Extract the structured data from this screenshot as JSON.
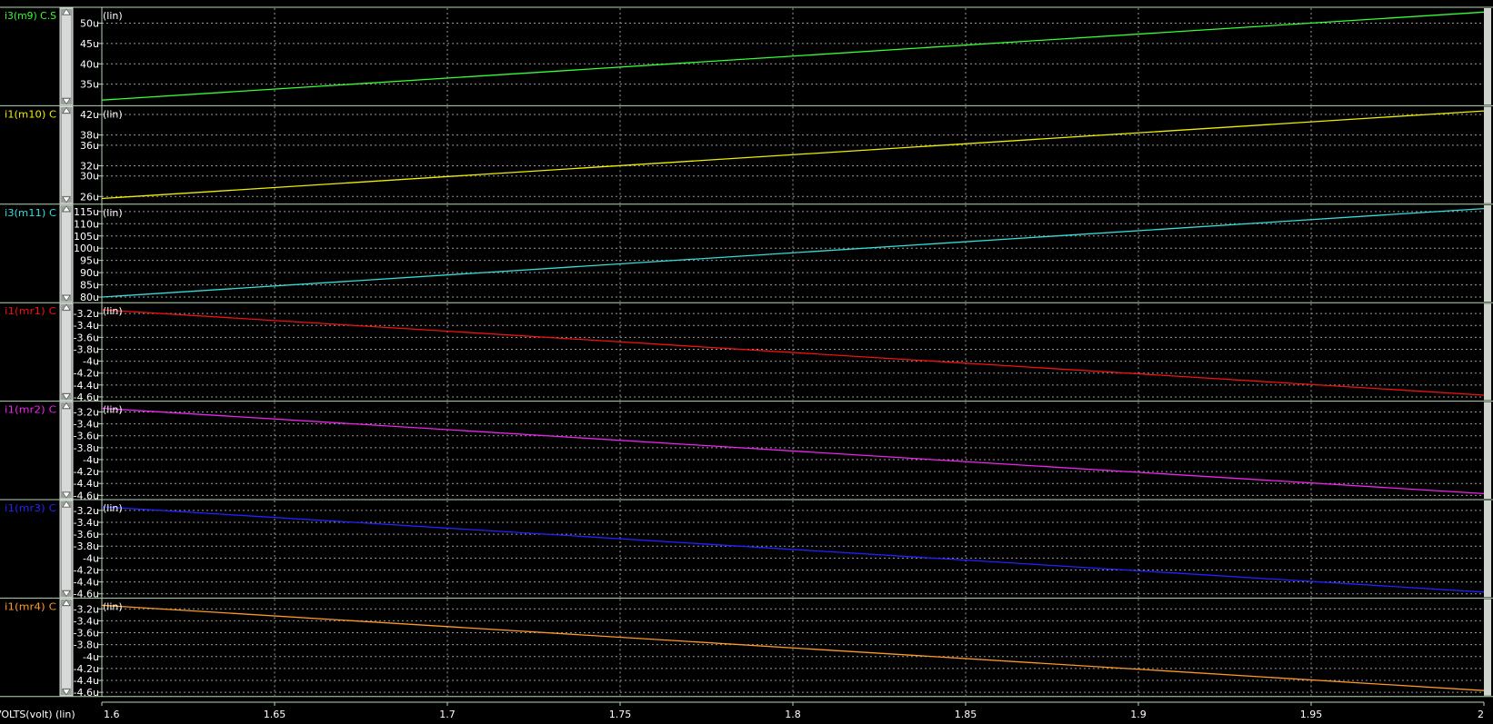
{
  "window": {
    "x_axis_label": "VOLTS(volt) (lin)",
    "scale_mode_label": "(lin)"
  },
  "colors": {
    "background": "#000000",
    "frame": "#b8d8b8",
    "grid": "#9a9a9a",
    "text": "#ffffff",
    "scrollbar": "#d8d8d8"
  },
  "chart_data": {
    "type": "line",
    "x_axis": {
      "label": "VOLTS(volt) (lin)",
      "range": [
        1.6,
        2.0
      ],
      "ticks": [
        1.6,
        1.65,
        1.7,
        1.75,
        1.8,
        1.85,
        1.9,
        1.95,
        2.0
      ],
      "tick_labels": [
        "1.6",
        "1.65",
        "1.7",
        "1.75",
        "1.8",
        "1.85",
        "1.9",
        "1.95",
        "2"
      ]
    },
    "panels": [
      {
        "name": "i3(m9)",
        "label": "i3(m9) C.S",
        "color": "#33ff33",
        "scale": "(lin)",
        "ylim": [
          30.6,
          53.0
        ],
        "y_ticks": [
          35,
          40,
          45,
          50
        ],
        "y_tick_labels": [
          "35u",
          "40u",
          "45u",
          "50u"
        ],
        "x": [
          1.6,
          2.0
        ],
        "y": [
          31.1,
          52.7
        ],
        "unit": "uA"
      },
      {
        "name": "i1(m10)",
        "label": "i1(m10) C",
        "color": "#eeee00",
        "scale": "(lin)",
        "ylim": [
          25.2,
          43.0
        ],
        "y_ticks": [
          26,
          30,
          32,
          36,
          38,
          42
        ],
        "y_tick_labels": [
          "26u",
          "30u",
          "32u",
          "36u",
          "38u",
          "42u"
        ],
        "x": [
          1.6,
          2.0
        ],
        "y": [
          25.6,
          42.7
        ],
        "unit": "uA"
      },
      {
        "name": "i3(m11)",
        "label": "i3(m11) C",
        "color": "#33dddd",
        "scale": "(lin)",
        "ylim": [
          79.2,
          116.5
        ],
        "y_ticks": [
          80,
          85,
          90,
          95,
          100,
          105,
          110,
          115
        ],
        "y_tick_labels": [
          "80u",
          "85u",
          "90u",
          "95u",
          "100u",
          "105u",
          "110u",
          "115u"
        ],
        "x": [
          1.6,
          2.0
        ],
        "y": [
          80.0,
          116.2
        ],
        "unit": "uA"
      },
      {
        "name": "i1(mr1)",
        "label": "i1(mr1) C",
        "color": "#ee1111",
        "scale": "(lin)",
        "ylim": [
          -4.61,
          -3.08
        ],
        "y_ticks": [
          -3.2,
          -3.4,
          -3.6,
          -3.8,
          -4.0,
          -4.2,
          -4.4,
          -4.6
        ],
        "y_tick_labels": [
          "-3.2u",
          "-3.4u",
          "-3.6u",
          "-3.8u",
          "-4u",
          "-4.2u",
          "-4.4u",
          "-4.6u"
        ],
        "x": [
          1.6,
          2.0
        ],
        "y": [
          -3.14,
          -4.57
        ],
        "unit": "uA"
      },
      {
        "name": "i1(mr2)",
        "label": "i1(mr2) C",
        "color": "#ee22ee",
        "scale": "(lin)",
        "ylim": [
          -4.61,
          -3.08
        ],
        "y_ticks": [
          -3.2,
          -3.4,
          -3.6,
          -3.8,
          -4.0,
          -4.2,
          -4.4,
          -4.6
        ],
        "y_tick_labels": [
          "-3.2u",
          "-3.4u",
          "-3.6u",
          "-3.8u",
          "-4u",
          "-4.2u",
          "-4.4u",
          "-4.6u"
        ],
        "x": [
          1.6,
          2.0
        ],
        "y": [
          -3.14,
          -4.57
        ],
        "unit": "uA"
      },
      {
        "name": "i1(mr3)",
        "label": "i1(mr3) C",
        "color": "#2222ff",
        "scale": "(lin)",
        "ylim": [
          -4.61,
          -3.08
        ],
        "y_ticks": [
          -3.2,
          -3.4,
          -3.6,
          -3.8,
          -4.0,
          -4.2,
          -4.4,
          -4.6
        ],
        "y_tick_labels": [
          "-3.2u",
          "-3.4u",
          "-3.6u",
          "-3.8u",
          "-4u",
          "-4.2u",
          "-4.4u",
          "-4.6u"
        ],
        "x": [
          1.6,
          2.0
        ],
        "y": [
          -3.14,
          -4.57
        ],
        "unit": "uA"
      },
      {
        "name": "i1(mr4)",
        "label": "i1(mr4) C",
        "color": "#ff9922",
        "scale": "(lin)",
        "ylim": [
          -4.61,
          -3.08
        ],
        "y_ticks": [
          -3.2,
          -3.4,
          -3.6,
          -3.8,
          -4.0,
          -4.2,
          -4.4,
          -4.6
        ],
        "y_tick_labels": [
          "-3.2u",
          "-3.4u",
          "-3.6u",
          "-3.8u",
          "-4u",
          "-4.2u",
          "-4.4u",
          "-4.6u"
        ],
        "x": [
          1.6,
          2.0
        ],
        "y": [
          -3.14,
          -4.57
        ],
        "unit": "uA"
      }
    ]
  }
}
